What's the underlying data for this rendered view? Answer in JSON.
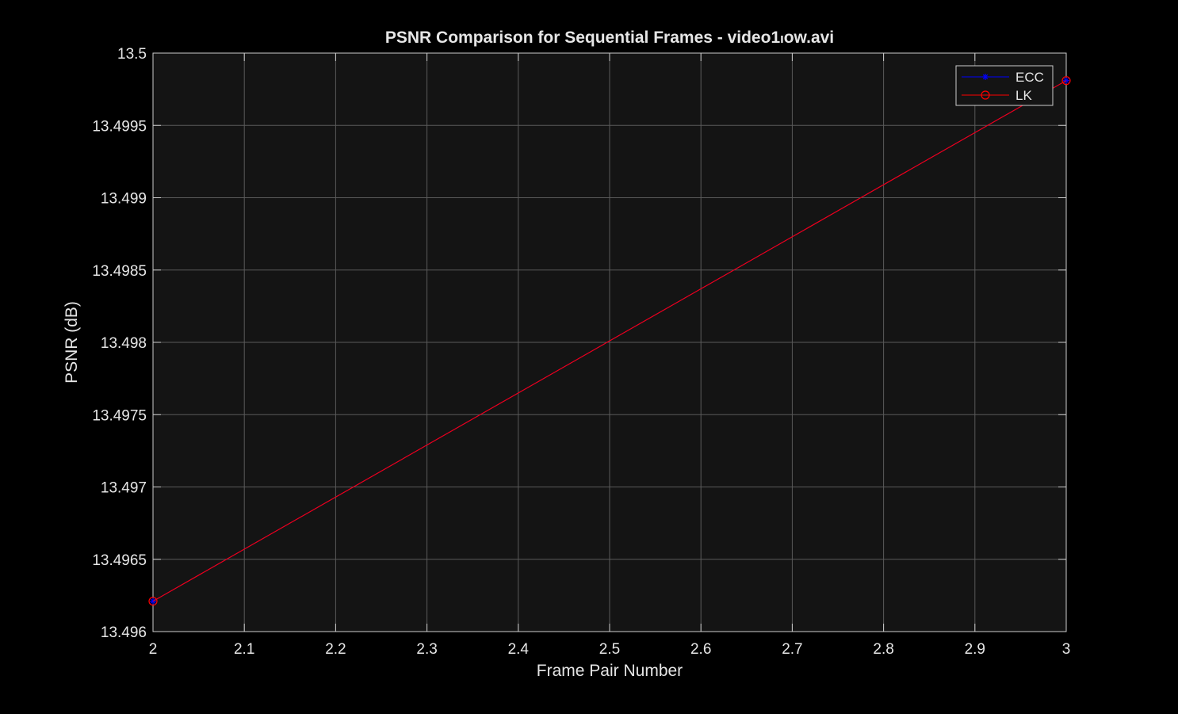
{
  "chart_data": {
    "type": "line",
    "title": "PSNR  Comparison  for  Sequential  Frames  -  video1ₗow.avi",
    "xlabel": "Frame Pair Number",
    "ylabel": "PSNR (dB)",
    "xlim": [
      2,
      3
    ],
    "ylim": [
      13.496,
      13.5
    ],
    "x_ticks": [
      "2",
      "2.1",
      "2.2",
      "2.3",
      "2.4",
      "2.5",
      "2.6",
      "2.7",
      "2.8",
      "2.9",
      "3"
    ],
    "y_ticks": [
      "13.496",
      "13.4965",
      "13.497",
      "13.4975",
      "13.498",
      "13.4985",
      "13.499",
      "13.4995",
      "13.5"
    ],
    "grid": true,
    "legend_position": "top-right",
    "series": [
      {
        "name": "ECC",
        "x": [
          2,
          3
        ],
        "values": [
          13.49621,
          13.49981
        ],
        "color": "#0000ff",
        "marker": "asterisk"
      },
      {
        "name": "LK",
        "x": [
          2,
          3
        ],
        "values": [
          13.49621,
          13.49981
        ],
        "color": "#ff0000",
        "marker": "circle"
      }
    ],
    "colors": {
      "background": "#000000",
      "axes_background": "#141414",
      "grid": "#5a5a5a",
      "text": "#e6e6e6"
    }
  }
}
